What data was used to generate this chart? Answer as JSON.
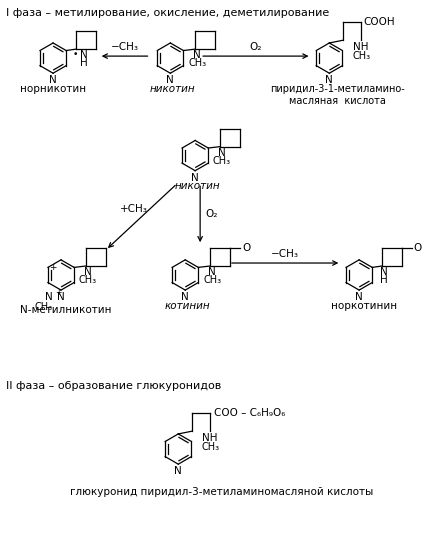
{
  "title_phase1": "I фаза – метилирование, окисление, деметилирование",
  "title_phase2": "II фаза – образование глюкуронидов",
  "label_nornicotine": "норникотин",
  "label_nicotine": "никотин",
  "label_pyridyl_acid": "пиридил-3-1-метиламино-\nмасляная  кислота",
  "label_nicotine2": "никотин",
  "label_nmethylnicotine": "N-метилникотин",
  "label_cotinine": "котинин",
  "label_norcotinine": "норкотинин",
  "label_glucuronide": "глюкуронид пиридил-3-метиламиномасляной кислоты",
  "arrow_demethyl": "−CH₃",
  "arrow_o2_right": "O₂",
  "arrow_methyl": "+CH₃",
  "arrow_o2_down": "O₂",
  "arrow_demethyl2": "−CH₃",
  "bg_color": "#ffffff",
  "line_color": "#000000",
  "font_size": 7.5,
  "title_font_size": 8.0
}
